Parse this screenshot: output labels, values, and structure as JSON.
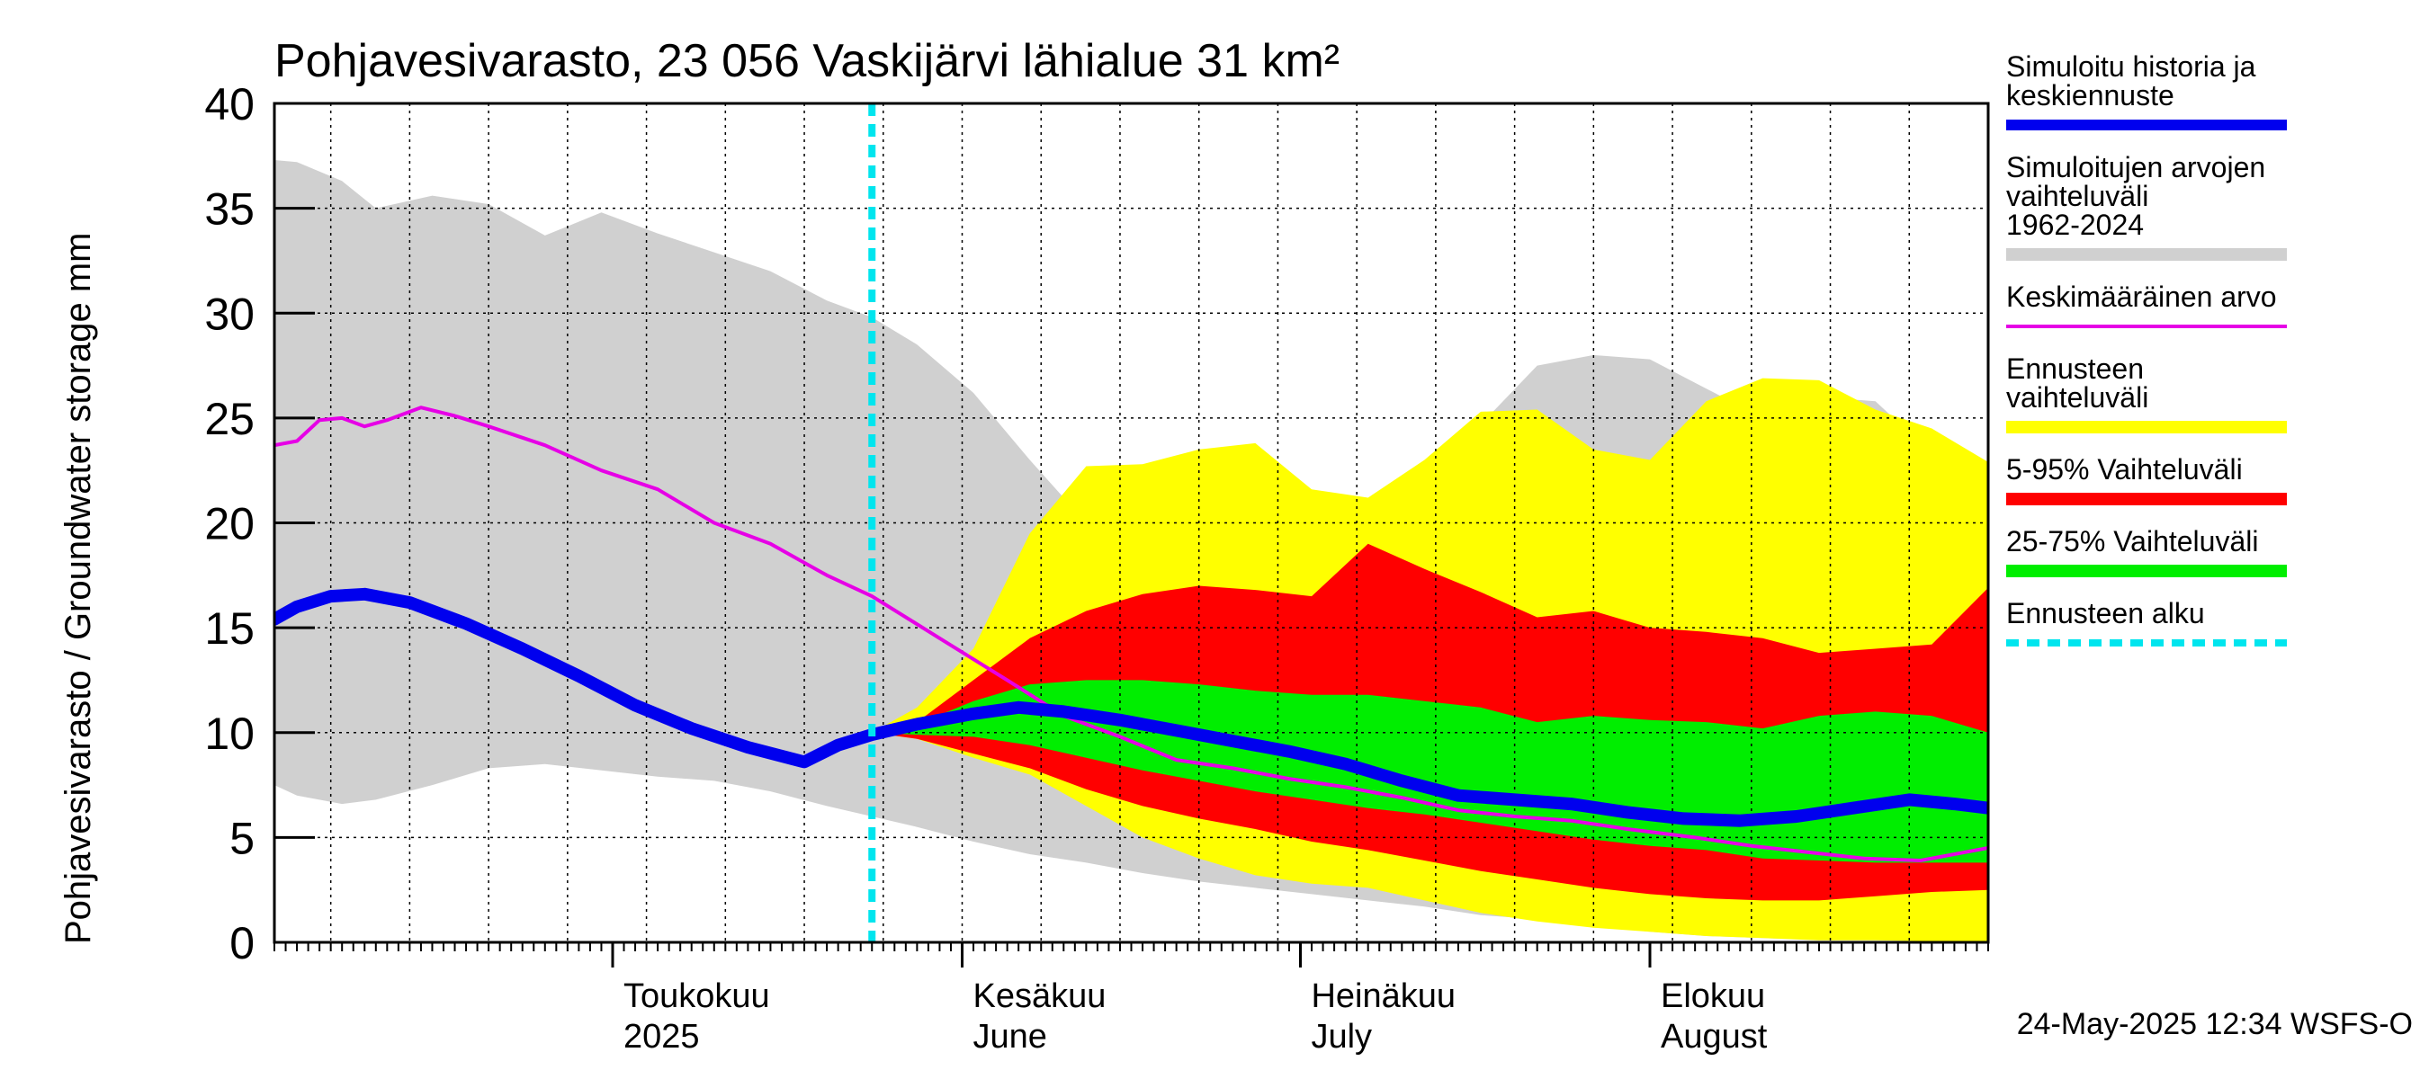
{
  "chart_data": {
    "type": "area",
    "title": "Pohjavesivarasto, 23 056 Vaskijärvi lähialue 31 km²",
    "ylabel": "Pohjavesivarasto / Groundwater storage   mm",
    "ylim": [
      0,
      40
    ],
    "yticks": [
      0,
      5,
      10,
      15,
      20,
      25,
      30,
      35,
      40
    ],
    "xlim": [
      "2025-04-01",
      "2025-08-31"
    ],
    "grid": true,
    "legend_position": "right",
    "timestamp": "24-May-2025 12:34 WSFS-O",
    "forecast_start": "2025-05-24",
    "month_labels": [
      {
        "date": "2025-05-01",
        "line1": "Toukokuu",
        "line2": "2025"
      },
      {
        "date": "2025-06-01",
        "line1": "Kesäkuu",
        "line2": "June"
      },
      {
        "date": "2025-07-01",
        "line1": "Heinäkuu",
        "line2": "July"
      },
      {
        "date": "2025-08-01",
        "line1": "Elokuu",
        "line2": "August"
      }
    ],
    "legend": [
      {
        "label": "Simuloitu historia ja keskiennuste",
        "color": "#0000ee",
        "style": "thick"
      },
      {
        "label": "Simuloitujen arvojen vaihteluväli 1962-2024",
        "color": "#d0d0d0",
        "style": "band"
      },
      {
        "label": "Keskimääräinen arvo",
        "color": "#e600e6",
        "style": "thin"
      },
      {
        "label": "Ennusteen vaihteluväli",
        "color": "#ffff00",
        "style": "band"
      },
      {
        "label": "5-95% Vaihteluväli",
        "color": "#ff0000",
        "style": "band"
      },
      {
        "label": "25-75% Vaihteluväli",
        "color": "#00ee00",
        "style": "band"
      },
      {
        "label": "Ennusteen alku",
        "color": "#00e5ee",
        "style": "dashed"
      }
    ],
    "history_range": {
      "x": [
        "2025-04-01",
        "2025-04-03",
        "2025-04-07",
        "2025-04-10",
        "2025-04-15",
        "2025-04-20",
        "2025-04-25",
        "2025-04-30",
        "2025-05-05",
        "2025-05-10",
        "2025-05-15",
        "2025-05-20",
        "2025-05-24",
        "2025-05-28",
        "2025-06-02",
        "2025-06-07",
        "2025-06-12",
        "2025-06-17",
        "2025-06-22",
        "2025-06-27",
        "2025-07-02",
        "2025-07-07",
        "2025-07-12",
        "2025-07-17",
        "2025-07-22",
        "2025-07-27",
        "2025-08-01",
        "2025-08-06",
        "2025-08-11",
        "2025-08-16",
        "2025-08-21",
        "2025-08-26",
        "2025-08-31"
      ],
      "low": [
        7.5,
        7.0,
        6.6,
        6.8,
        7.5,
        8.3,
        8.5,
        8.2,
        7.9,
        7.7,
        7.2,
        6.5,
        6.0,
        5.5,
        4.8,
        4.2,
        3.8,
        3.3,
        2.9,
        2.6,
        2.3,
        2.0,
        1.7,
        1.3,
        1.1,
        0.8,
        0.5,
        0.3,
        0.2,
        0.1,
        0.1,
        0.05,
        0.0
      ],
      "high": [
        37.3,
        37.2,
        36.3,
        35.0,
        35.6,
        35.2,
        33.7,
        34.8,
        33.8,
        32.9,
        32.0,
        30.6,
        29.8,
        28.5,
        26.2,
        23.0,
        20.0,
        19.2,
        19.8,
        21.5,
        21.4,
        19.5,
        22.7,
        24.7,
        27.5,
        28.0,
        27.8,
        26.4,
        25.0,
        26.0,
        25.8,
        23.3,
        21.7
      ]
    },
    "mean_value": {
      "x": [
        "2025-04-01",
        "2025-04-03",
        "2025-04-05",
        "2025-04-07",
        "2025-04-09",
        "2025-04-11",
        "2025-04-14",
        "2025-04-17",
        "2025-04-20",
        "2025-04-25",
        "2025-04-30",
        "2025-05-05",
        "2025-05-10",
        "2025-05-15",
        "2025-05-20",
        "2025-05-24",
        "2025-05-30",
        "2025-06-05",
        "2025-06-10",
        "2025-06-15",
        "2025-06-20",
        "2025-06-25",
        "2025-06-30",
        "2025-07-05",
        "2025-07-10",
        "2025-07-15",
        "2025-07-20",
        "2025-07-25",
        "2025-07-30",
        "2025-08-05",
        "2025-08-10",
        "2025-08-15",
        "2025-08-20",
        "2025-08-25",
        "2025-08-31"
      ],
      "values": [
        23.7,
        23.9,
        24.9,
        25.0,
        24.6,
        24.9,
        25.5,
        25.1,
        24.6,
        23.7,
        22.5,
        21.6,
        20.0,
        19.0,
        17.5,
        16.5,
        14.5,
        12.5,
        10.8,
        9.8,
        8.7,
        8.3,
        7.8,
        7.4,
        6.9,
        6.3,
        6.0,
        5.8,
        5.4,
        5.0,
        4.6,
        4.3,
        4.0,
        3.9,
        4.5
      ]
    },
    "history_and_median": {
      "x": [
        "2025-04-01",
        "2025-04-03",
        "2025-04-06",
        "2025-04-09",
        "2025-04-13",
        "2025-04-18",
        "2025-04-23",
        "2025-04-28",
        "2025-05-03",
        "2025-05-08",
        "2025-05-13",
        "2025-05-18",
        "2025-05-21",
        "2025-05-24",
        "2025-05-28",
        "2025-06-02",
        "2025-06-06",
        "2025-06-10",
        "2025-06-15",
        "2025-06-20",
        "2025-06-25",
        "2025-06-30",
        "2025-07-05",
        "2025-07-10",
        "2025-07-15",
        "2025-07-20",
        "2025-07-25",
        "2025-07-30",
        "2025-08-04",
        "2025-08-09",
        "2025-08-14",
        "2025-08-19",
        "2025-08-24",
        "2025-08-28",
        "2025-08-31"
      ],
      "values": [
        15.4,
        16.0,
        16.5,
        16.6,
        16.2,
        15.2,
        14.0,
        12.7,
        11.3,
        10.2,
        9.3,
        8.6,
        9.4,
        9.9,
        10.4,
        10.9,
        11.2,
        11.0,
        10.6,
        10.1,
        9.6,
        9.1,
        8.5,
        7.7,
        7.0,
        6.8,
        6.6,
        6.2,
        5.9,
        5.8,
        6.0,
        6.4,
        6.8,
        6.6,
        6.4
      ]
    },
    "forecast_range": {
      "x": [
        "2025-05-24",
        "2025-05-28",
        "2025-06-02",
        "2025-06-07",
        "2025-06-12",
        "2025-06-17",
        "2025-06-22",
        "2025-06-27",
        "2025-07-02",
        "2025-07-07",
        "2025-07-12",
        "2025-07-17",
        "2025-07-22",
        "2025-07-27",
        "2025-08-01",
        "2025-08-06",
        "2025-08-11",
        "2025-08-16",
        "2025-08-21",
        "2025-08-26",
        "2025-08-31"
      ],
      "low": [
        10.0,
        9.7,
        8.8,
        8.0,
        6.5,
        5.0,
        4.0,
        3.2,
        2.8,
        2.6,
        2.0,
        1.4,
        1.0,
        0.7,
        0.5,
        0.3,
        0.2,
        0.1,
        0.1,
        0.05,
        0.0
      ],
      "high": [
        10.0,
        11.2,
        14.0,
        19.5,
        22.7,
        22.8,
        23.5,
        23.8,
        21.6,
        21.2,
        23.0,
        25.3,
        25.4,
        23.5,
        23.0,
        25.8,
        26.9,
        26.8,
        25.4,
        24.5,
        22.9
      ]
    },
    "p5_95": {
      "x": [
        "2025-05-24",
        "2025-05-28",
        "2025-06-02",
        "2025-06-07",
        "2025-06-12",
        "2025-06-17",
        "2025-06-22",
        "2025-06-27",
        "2025-07-02",
        "2025-07-07",
        "2025-07-12",
        "2025-07-17",
        "2025-07-22",
        "2025-07-27",
        "2025-08-01",
        "2025-08-06",
        "2025-08-11",
        "2025-08-16",
        "2025-08-21",
        "2025-08-26",
        "2025-08-31"
      ],
      "low": [
        10.0,
        9.7,
        9.0,
        8.3,
        7.3,
        6.5,
        5.9,
        5.4,
        4.8,
        4.4,
        3.9,
        3.4,
        3.0,
        2.6,
        2.3,
        2.1,
        2.0,
        2.0,
        2.2,
        2.4,
        2.5
      ],
      "high": [
        10.0,
        10.5,
        12.5,
        14.5,
        15.8,
        16.6,
        17.0,
        16.8,
        16.5,
        19.0,
        17.8,
        16.7,
        15.5,
        15.8,
        15.0,
        14.8,
        14.5,
        13.8,
        14.0,
        14.2,
        16.9
      ]
    },
    "p25_75": {
      "x": [
        "2025-05-24",
        "2025-05-28",
        "2025-06-02",
        "2025-06-07",
        "2025-06-12",
        "2025-06-17",
        "2025-06-22",
        "2025-06-27",
        "2025-07-02",
        "2025-07-07",
        "2025-07-12",
        "2025-07-17",
        "2025-07-22",
        "2025-07-27",
        "2025-08-01",
        "2025-08-06",
        "2025-08-11",
        "2025-08-16",
        "2025-08-21",
        "2025-08-26",
        "2025-08-31"
      ],
      "low": [
        10.0,
        9.9,
        9.8,
        9.4,
        8.8,
        8.2,
        7.7,
        7.2,
        6.8,
        6.4,
        6.1,
        5.7,
        5.3,
        4.9,
        4.6,
        4.4,
        4.0,
        3.9,
        3.8,
        3.8,
        3.8
      ],
      "high": [
        10.0,
        10.4,
        11.5,
        12.3,
        12.5,
        12.5,
        12.3,
        12.0,
        11.8,
        11.8,
        11.5,
        11.2,
        10.5,
        10.8,
        10.6,
        10.5,
        10.2,
        10.8,
        11.0,
        10.8,
        10.0
      ]
    }
  }
}
